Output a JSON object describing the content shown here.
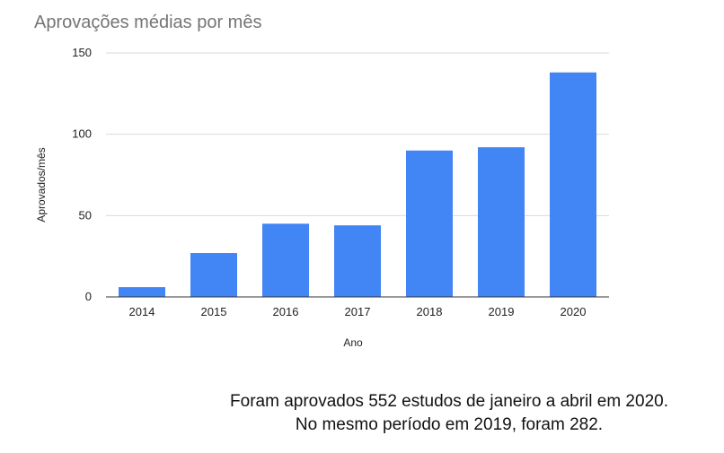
{
  "chart_data": {
    "type": "bar",
    "title": "Aprovações médias por mês",
    "xlabel": "Ano",
    "ylabel": "Aprovados/mês",
    "categories": [
      "2014",
      "2015",
      "2016",
      "2017",
      "2018",
      "2019",
      "2020"
    ],
    "values": [
      6,
      27,
      45,
      44,
      90,
      92,
      138
    ],
    "ylim": [
      0,
      150
    ],
    "yticks": [
      "0",
      "50",
      "100",
      "150"
    ],
    "grid": true,
    "legend": "none",
    "bar_color": "#4285f4"
  },
  "caption": {
    "line1": "Foram aprovados 552 estudos de janeiro a abril em 2020.",
    "line2": "No mesmo período em 2019, foram 282."
  }
}
